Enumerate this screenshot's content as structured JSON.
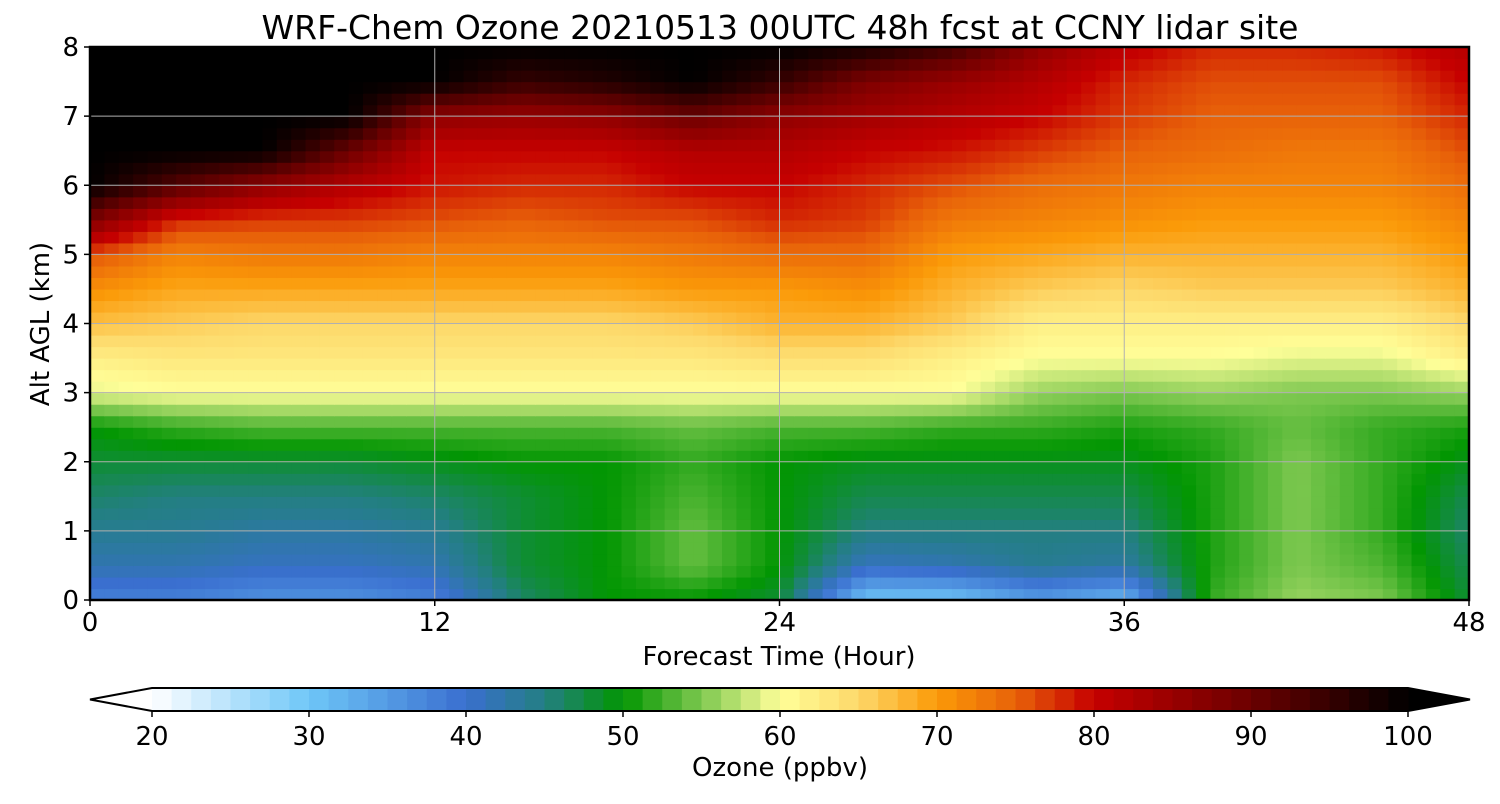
{
  "chart_data": {
    "type": "heatmap",
    "title": "WRF-Chem Ozone  20210513 00UTC 48h fcst at CCNY lidar site",
    "xlabel": "Forecast Time (Hour)",
    "ylabel": "Alt AGL (km)",
    "xlim": [
      0,
      48
    ],
    "ylim": [
      0,
      8
    ],
    "x_ticks": [
      0,
      12,
      24,
      36,
      48
    ],
    "y_ticks": [
      0,
      1,
      2,
      3,
      4,
      5,
      6,
      7,
      8
    ],
    "grid": true,
    "colorbar": {
      "label": "Ozone  (ppbv)",
      "orientation": "horizontal",
      "placement": "bottom",
      "min": 20,
      "max": 100,
      "ticks": [
        20,
        30,
        40,
        50,
        60,
        70,
        80,
        90,
        100
      ],
      "extend": "both",
      "color_stops": [
        {
          "value": 20,
          "color": "#ffffff"
        },
        {
          "value": 30,
          "color": "#6ec6f8"
        },
        {
          "value": 40,
          "color": "#3a6fcf"
        },
        {
          "value": 45,
          "color": "#237f82"
        },
        {
          "value": 50,
          "color": "#029602"
        },
        {
          "value": 55,
          "color": "#7ec850"
        },
        {
          "value": 60,
          "color": "#ffff99"
        },
        {
          "value": 65,
          "color": "#fdd86a"
        },
        {
          "value": 70,
          "color": "#fb9a08"
        },
        {
          "value": 75,
          "color": "#e86209"
        },
        {
          "value": 80,
          "color": "#c60000"
        },
        {
          "value": 90,
          "color": "#6b0000"
        },
        {
          "value": 100,
          "color": "#000000"
        }
      ]
    },
    "x": [
      0,
      3,
      6,
      9,
      12,
      15,
      18,
      21,
      24,
      27,
      30,
      33,
      36,
      39,
      42,
      45,
      48
    ],
    "y": [
      0,
      0.5,
      1,
      1.5,
      2,
      2.5,
      3,
      3.5,
      4,
      4.5,
      5,
      5.5,
      6,
      6.5,
      7,
      7.5,
      8
    ],
    "z": [
      [
        38,
        38,
        36,
        36,
        38,
        46,
        50,
        50,
        48,
        30,
        30,
        35,
        32,
        52,
        56,
        55,
        48
      ],
      [
        42,
        42,
        41,
        41,
        42,
        48,
        50,
        54,
        50,
        41,
        42,
        44,
        43,
        51,
        55,
        53,
        47
      ],
      [
        44,
        44,
        43,
        43,
        44,
        48,
        50,
        54,
        50,
        45,
        45,
        45,
        45,
        51,
        55,
        52,
        46
      ],
      [
        46,
        45,
        45,
        45,
        46,
        48,
        50,
        53,
        50,
        47,
        47,
        47,
        47,
        51,
        55,
        52,
        47
      ],
      [
        48,
        48,
        48,
        48,
        49,
        50,
        50,
        52,
        50,
        49,
        49,
        49,
        49,
        51,
        55,
        52,
        49
      ],
      [
        50,
        52,
        53,
        53,
        53,
        53,
        53,
        54,
        53,
        53,
        52,
        52,
        51,
        52,
        54,
        52,
        51
      ],
      [
        59,
        60,
        60,
        60,
        60,
        60,
        60,
        60,
        60,
        60,
        60,
        56,
        55,
        56,
        55,
        55,
        56
      ],
      [
        62,
        63,
        63,
        63,
        63,
        63,
        63,
        63,
        64,
        64,
        62,
        60,
        60,
        60,
        59,
        59,
        62
      ],
      [
        67,
        66,
        65,
        65,
        65,
        65,
        65,
        66,
        68,
        68,
        66,
        62,
        62,
        62,
        62,
        62,
        65
      ],
      [
        71,
        69,
        69,
        69,
        69,
        69,
        69,
        70,
        70,
        71,
        68,
        66,
        65,
        66,
        66,
        66,
        68
      ],
      [
        76,
        72,
        73,
        73,
        72,
        72,
        72,
        73,
        74,
        74,
        70,
        69,
        68,
        68,
        68,
        68,
        70
      ],
      [
        88,
        78,
        77,
        77,
        76,
        75,
        76,
        76,
        78,
        77,
        73,
        72,
        71,
        70,
        70,
        70,
        72
      ],
      [
        100,
        92,
        86,
        82,
        79,
        78,
        78,
        80,
        80,
        78,
        76,
        74,
        73,
        72,
        72,
        72,
        74
      ],
      [
        100,
        100,
        100,
        90,
        80,
        80,
        80,
        82,
        82,
        80,
        79,
        77,
        75,
        74,
        73,
        73,
        76
      ],
      [
        100,
        100,
        100,
        100,
        86,
        85,
        86,
        90,
        86,
        84,
        82,
        80,
        77,
        75,
        75,
        75,
        78
      ],
      [
        100,
        100,
        100,
        100,
        100,
        95,
        97,
        100,
        95,
        88,
        85,
        82,
        78,
        76,
        76,
        76,
        80
      ],
      [
        100,
        100,
        100,
        100,
        100,
        100,
        100,
        100,
        100,
        98,
        94,
        86,
        81,
        78,
        78,
        79,
        82
      ]
    ]
  }
}
